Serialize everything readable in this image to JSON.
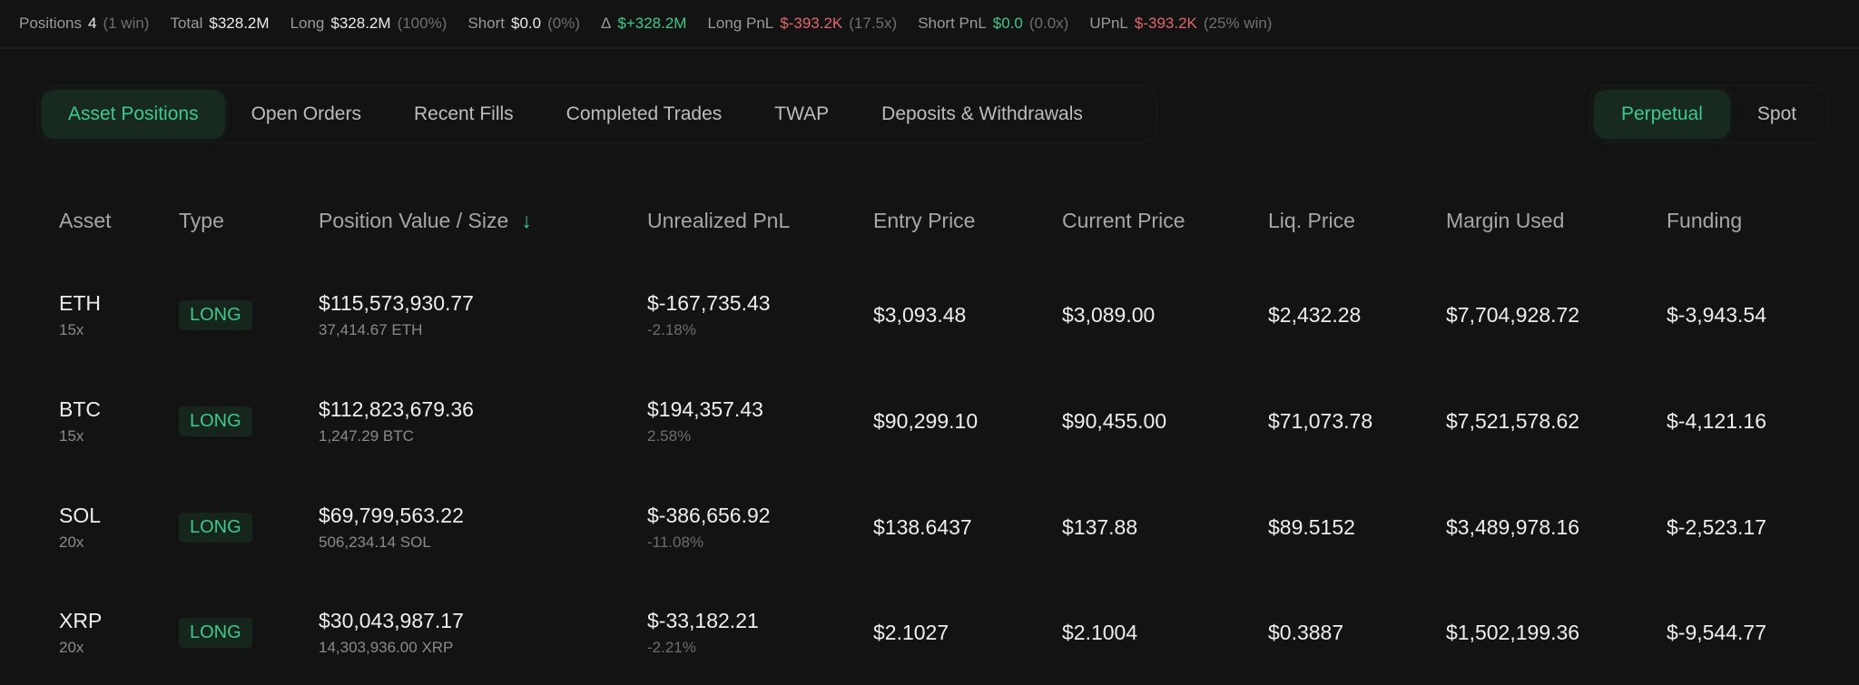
{
  "summary": {
    "positions": {
      "label": "Positions",
      "value": "4",
      "note": "(1 win)"
    },
    "total": {
      "label": "Total",
      "value": "$328.2M"
    },
    "long": {
      "label": "Long",
      "value": "$328.2M",
      "note": "(100%)"
    },
    "short": {
      "label": "Short",
      "value": "$0.0",
      "note": "(0%)"
    },
    "delta": {
      "label": "Δ",
      "value": "$+328.2M"
    },
    "long_pnl": {
      "label": "Long PnL",
      "value": "$-393.2K",
      "note": "(17.5x)"
    },
    "short_pnl": {
      "label": "Short PnL",
      "value": "$0.0",
      "note": "(0.0x)"
    },
    "upnl": {
      "label": "UPnL",
      "value": "$-393.2K",
      "note": "(25% win)"
    }
  },
  "tabs": [
    "Asset Positions",
    "Open Orders",
    "Recent Fills",
    "Completed Trades",
    "TWAP",
    "Deposits & Withdrawals"
  ],
  "active_tab": "Asset Positions",
  "market_tabs": [
    "Perpetual",
    "Spot"
  ],
  "active_market": "Perpetual",
  "colors": {
    "green": "#3ec98a",
    "red": "#e0676d",
    "bg": "#131313"
  },
  "table": {
    "headers": [
      "Asset",
      "Type",
      "Position Value / Size",
      "Unrealized PnL",
      "Entry Price",
      "Current Price",
      "Liq. Price",
      "Margin Used",
      "Funding"
    ],
    "sort_icon": "arrow-down-icon",
    "rows": [
      {
        "asset": "ETH",
        "leverage": "15x",
        "type": "LONG",
        "value": "$115,573,930.77",
        "size": "37,414.67 ETH",
        "pnl": "$-167,735.43",
        "pnl_pct": "-2.18%",
        "pnl_sign": "neg",
        "entry": "$3,093.48",
        "current": "$3,089.00",
        "liq": "$2,432.28",
        "margin": "$7,704,928.72",
        "funding": "$-3,943.54"
      },
      {
        "asset": "BTC",
        "leverage": "15x",
        "type": "LONG",
        "value": "$112,823,679.36",
        "size": "1,247.29 BTC",
        "pnl": "$194,357.43",
        "pnl_pct": "2.58%",
        "pnl_sign": "pos",
        "entry": "$90,299.10",
        "current": "$90,455.00",
        "liq": "$71,073.78",
        "margin": "$7,521,578.62",
        "funding": "$-4,121.16"
      },
      {
        "asset": "SOL",
        "leverage": "20x",
        "type": "LONG",
        "value": "$69,799,563.22",
        "size": "506,234.14 SOL",
        "pnl": "$-386,656.92",
        "pnl_pct": "-11.08%",
        "pnl_sign": "neg",
        "entry": "$138.6437",
        "current": "$137.88",
        "liq": "$89.5152",
        "margin": "$3,489,978.16",
        "funding": "$-2,523.17"
      },
      {
        "asset": "XRP",
        "leverage": "20x",
        "type": "LONG",
        "value": "$30,043,987.17",
        "size": "14,303,936.00 XRP",
        "pnl": "$-33,182.21",
        "pnl_pct": "-2.21%",
        "pnl_sign": "neg",
        "entry": "$2.1027",
        "current": "$2.1004",
        "liq": "$0.3887",
        "margin": "$1,502,199.36",
        "funding": "$-9,544.77"
      }
    ]
  }
}
